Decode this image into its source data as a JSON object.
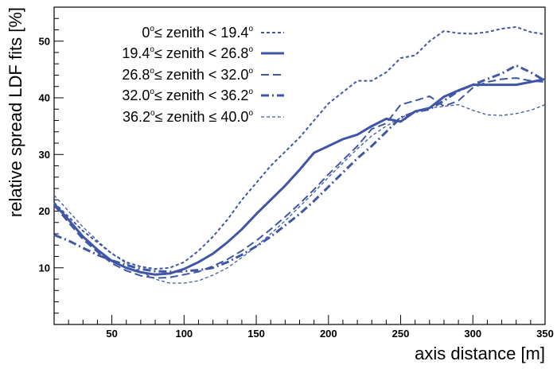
{
  "chart_data": {
    "type": "line",
    "xlabel": "axis distance [m]",
    "ylabel": "relative spread LDF fits [%]",
    "xlim": [
      10,
      350
    ],
    "ylim": [
      0,
      56
    ],
    "x_ticks": [
      "50",
      "100",
      "150",
      "200",
      "250",
      "300",
      "350"
    ],
    "y_ticks": [
      "10",
      "20",
      "30",
      "40",
      "50"
    ],
    "grid": false,
    "legend_position": "top-left",
    "line_color": "#3f56a6",
    "series": [
      {
        "name": "0° ≤ zenith < 19.4°",
        "label_parts": [
          "0",
          "o",
          "≤ zenith < 19.4",
          "o"
        ],
        "style": "dotted",
        "points": [
          [
            10,
            21.5
          ],
          [
            20,
            19
          ],
          [
            30,
            16.5
          ],
          [
            40,
            14.5
          ],
          [
            50,
            12.5
          ],
          [
            60,
            11
          ],
          [
            70,
            10.2
          ],
          [
            80,
            9.8
          ],
          [
            90,
            10
          ],
          [
            100,
            11
          ],
          [
            110,
            13
          ],
          [
            120,
            15.5
          ],
          [
            130,
            18.5
          ],
          [
            140,
            22
          ],
          [
            150,
            25
          ],
          [
            160,
            28
          ],
          [
            170,
            30.5
          ],
          [
            180,
            33
          ],
          [
            190,
            36
          ],
          [
            200,
            39
          ],
          [
            210,
            41
          ],
          [
            220,
            43
          ],
          [
            230,
            43
          ],
          [
            240,
            44.5
          ],
          [
            250,
            47
          ],
          [
            260,
            47.5
          ],
          [
            270,
            50
          ],
          [
            280,
            51.8
          ],
          [
            290,
            51.4
          ],
          [
            300,
            51.3
          ],
          [
            310,
            51.6
          ],
          [
            320,
            52.2
          ],
          [
            330,
            52.5
          ],
          [
            340,
            51.6
          ],
          [
            350,
            51.2
          ]
        ]
      },
      {
        "name": "19.4° ≤ zenith < 26.8°",
        "label_parts": [
          "19.4",
          "o",
          "≤ zenith < 26.8",
          "o"
        ],
        "style": "solid",
        "points": [
          [
            10,
            21.3
          ],
          [
            20,
            18.5
          ],
          [
            30,
            15.5
          ],
          [
            40,
            13.2
          ],
          [
            50,
            11.2
          ],
          [
            60,
            10
          ],
          [
            70,
            9.2
          ],
          [
            80,
            8.8
          ],
          [
            90,
            9
          ],
          [
            100,
            9.8
          ],
          [
            110,
            11
          ],
          [
            120,
            12.5
          ],
          [
            130,
            14.5
          ],
          [
            140,
            16.8
          ],
          [
            150,
            19.5
          ],
          [
            160,
            22
          ],
          [
            170,
            24.5
          ],
          [
            180,
            27.3
          ],
          [
            190,
            30.3
          ],
          [
            200,
            31.5
          ],
          [
            210,
            32.7
          ],
          [
            220,
            33.5
          ],
          [
            230,
            35
          ],
          [
            240,
            36.3
          ],
          [
            250,
            35.8
          ],
          [
            260,
            37.6
          ],
          [
            270,
            38.2
          ],
          [
            280,
            40.2
          ],
          [
            290,
            41.3
          ],
          [
            300,
            42.3
          ],
          [
            310,
            42.3
          ],
          [
            320,
            42.3
          ],
          [
            330,
            42.3
          ],
          [
            340,
            42.8
          ],
          [
            350,
            43.3
          ]
        ]
      },
      {
        "name": "26.8° ≤ zenith < 32.0°",
        "label_parts": [
          "26.8",
          "o",
          "≤ zenith < 32.0",
          "o"
        ],
        "style": "dashed",
        "points": [
          [
            10,
            21
          ],
          [
            20,
            18
          ],
          [
            30,
            15
          ],
          [
            40,
            12.8
          ],
          [
            50,
            10.8
          ],
          [
            60,
            9.5
          ],
          [
            70,
            8.6
          ],
          [
            80,
            8.2
          ],
          [
            90,
            8.3
          ],
          [
            100,
            8.8
          ],
          [
            110,
            9.3
          ],
          [
            120,
            10.3
          ],
          [
            130,
            11.5
          ],
          [
            140,
            13
          ],
          [
            150,
            14.8
          ],
          [
            160,
            16.8
          ],
          [
            170,
            19
          ],
          [
            180,
            21.3
          ],
          [
            190,
            23.8
          ],
          [
            200,
            26.5
          ],
          [
            210,
            29
          ],
          [
            220,
            31.5
          ],
          [
            230,
            34.5
          ],
          [
            240,
            35.5
          ],
          [
            250,
            38.8
          ],
          [
            260,
            39.5
          ],
          [
            270,
            40.3
          ],
          [
            280,
            38.5
          ],
          [
            290,
            39.5
          ],
          [
            300,
            41.8
          ],
          [
            310,
            42.8
          ],
          [
            320,
            43.3
          ],
          [
            330,
            43.5
          ],
          [
            340,
            43
          ],
          [
            350,
            42.8
          ]
        ]
      },
      {
        "name": "32.0° ≤ zenith < 36.2°",
        "label_parts": [
          "32.0",
          "o",
          "≤ zenith < 36.2",
          "o"
        ],
        "style": "dashdot",
        "points": [
          [
            10,
            15.8
          ],
          [
            20,
            14.8
          ],
          [
            30,
            13.5
          ],
          [
            40,
            12.3
          ],
          [
            50,
            11.3
          ],
          [
            60,
            10.5
          ],
          [
            70,
            9.8
          ],
          [
            80,
            9.4
          ],
          [
            90,
            9.3
          ],
          [
            100,
            9.4
          ],
          [
            110,
            9.6
          ],
          [
            120,
            10
          ],
          [
            130,
            11
          ],
          [
            140,
            12.3
          ],
          [
            150,
            13.8
          ],
          [
            160,
            15.5
          ],
          [
            170,
            17.5
          ],
          [
            180,
            19.5
          ],
          [
            190,
            21.8
          ],
          [
            200,
            24.3
          ],
          [
            210,
            26.8
          ],
          [
            220,
            29.3
          ],
          [
            230,
            31.5
          ],
          [
            240,
            34
          ],
          [
            250,
            36.5
          ],
          [
            260,
            37.5
          ],
          [
            270,
            38
          ],
          [
            280,
            39.5
          ],
          [
            290,
            41.2
          ],
          [
            300,
            42.3
          ],
          [
            310,
            43.3
          ],
          [
            320,
            44.3
          ],
          [
            330,
            45.7
          ],
          [
            340,
            44.5
          ],
          [
            350,
            43
          ]
        ]
      },
      {
        "name": "36.2° ≤ zenith ≤ 40.0°",
        "label_parts": [
          "36.2",
          "o",
          "≤ zenith ≤ 40.0",
          "o"
        ],
        "style": "shortdash",
        "points": [
          [
            10,
            22.8
          ],
          [
            20,
            20
          ],
          [
            30,
            17.2
          ],
          [
            40,
            14.8
          ],
          [
            50,
            12.5
          ],
          [
            60,
            10.8
          ],
          [
            70,
            9.3
          ],
          [
            80,
            8
          ],
          [
            90,
            7.3
          ],
          [
            100,
            7.3
          ],
          [
            110,
            7.7
          ],
          [
            120,
            8.7
          ],
          [
            130,
            10
          ],
          [
            140,
            11.8
          ],
          [
            150,
            13.8
          ],
          [
            160,
            16
          ],
          [
            170,
            18.3
          ],
          [
            180,
            20.8
          ],
          [
            190,
            23.3
          ],
          [
            200,
            26
          ],
          [
            210,
            28.5
          ],
          [
            220,
            31
          ],
          [
            230,
            33.3
          ],
          [
            240,
            35
          ],
          [
            250,
            36.5
          ],
          [
            260,
            37.5
          ],
          [
            270,
            38.2
          ],
          [
            280,
            38.5
          ],
          [
            290,
            38.8
          ],
          [
            300,
            37.8
          ],
          [
            310,
            37
          ],
          [
            320,
            36.9
          ],
          [
            330,
            37.2
          ],
          [
            340,
            37.8
          ],
          [
            350,
            38.8
          ]
        ]
      }
    ]
  }
}
